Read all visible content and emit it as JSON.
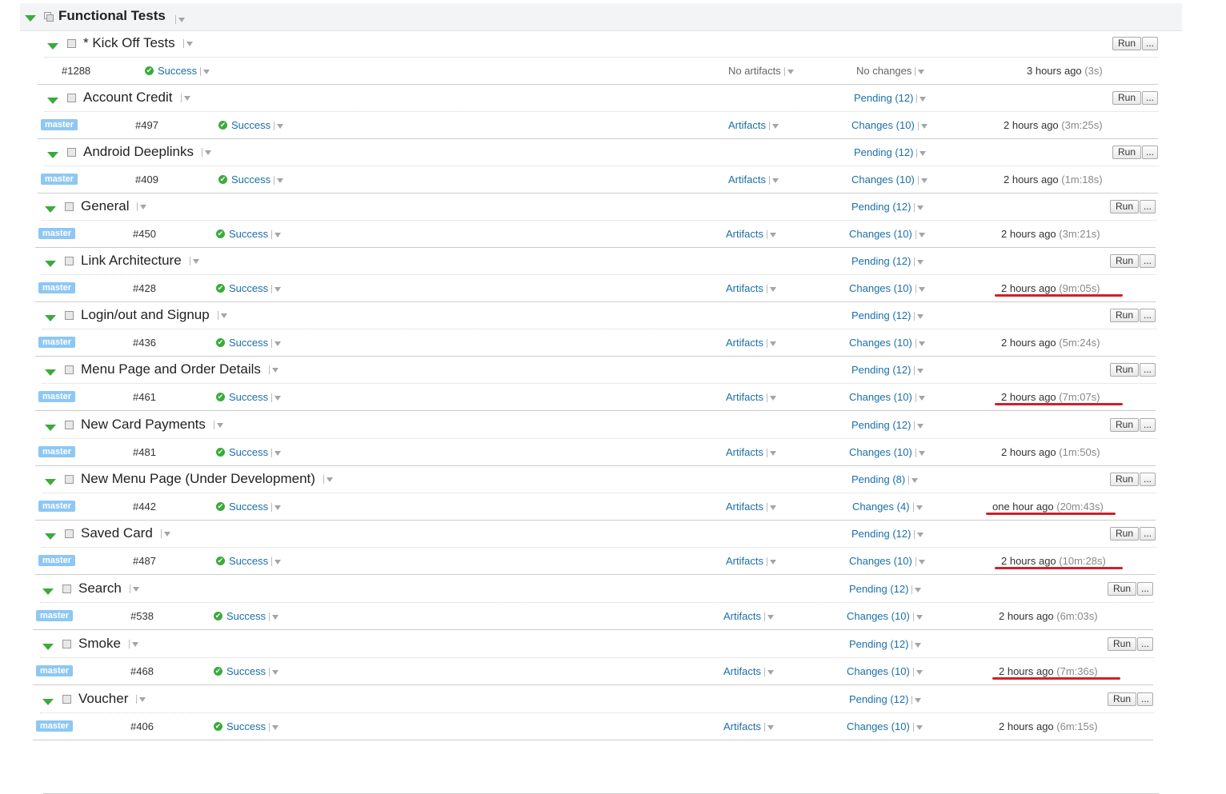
{
  "project": {
    "title": "Functional Tests"
  },
  "run_label": "Run",
  "more_label": "...",
  "configs": [
    {
      "name": "* Kick Off Tests",
      "pending": "",
      "build": {
        "branch": "",
        "number": "#1288",
        "status": "Success",
        "artifacts": "No artifacts",
        "changes": "No changes",
        "time": "3 hours ago",
        "duration": "(3s)",
        "highlighted": false
      }
    },
    {
      "name": "Account Credit",
      "pending": "Pending (12)",
      "build": {
        "branch": "master",
        "number": "#497",
        "status": "Success",
        "artifacts": "Artifacts",
        "changes": "Changes (10)",
        "time": "2 hours ago",
        "duration": "(3m:25s)",
        "highlighted": false
      }
    },
    {
      "name": "Android Deeplinks",
      "pending": "Pending (12)",
      "build": {
        "branch": "master",
        "number": "#409",
        "status": "Success",
        "artifacts": "Artifacts",
        "changes": "Changes (10)",
        "time": "2 hours ago",
        "duration": "(1m:18s)",
        "highlighted": false
      }
    },
    {
      "name": "General",
      "pending": "Pending (12)",
      "build": {
        "branch": "master",
        "number": "#450",
        "status": "Success",
        "artifacts": "Artifacts",
        "changes": "Changes (10)",
        "time": "2 hours ago",
        "duration": "(3m:21s)",
        "highlighted": false
      }
    },
    {
      "name": "Link Architecture",
      "pending": "Pending (12)",
      "build": {
        "branch": "master",
        "number": "#428",
        "status": "Success",
        "artifacts": "Artifacts",
        "changes": "Changes (10)",
        "time": "2 hours ago",
        "duration": "(9m:05s)",
        "highlighted": true
      }
    },
    {
      "name": "Login/out and Signup",
      "pending": "Pending (12)",
      "build": {
        "branch": "master",
        "number": "#436",
        "status": "Success",
        "artifacts": "Artifacts",
        "changes": "Changes (10)",
        "time": "2 hours ago",
        "duration": "(5m:24s)",
        "highlighted": false
      }
    },
    {
      "name": "Menu Page and Order Details",
      "pending": "Pending (12)",
      "build": {
        "branch": "master",
        "number": "#461",
        "status": "Success",
        "artifacts": "Artifacts",
        "changes": "Changes (10)",
        "time": "2 hours ago",
        "duration": "(7m:07s)",
        "highlighted": true
      }
    },
    {
      "name": "New Card Payments",
      "pending": "Pending (12)",
      "build": {
        "branch": "master",
        "number": "#481",
        "status": "Success",
        "artifacts": "Artifacts",
        "changes": "Changes (10)",
        "time": "2 hours ago",
        "duration": "(1m:50s)",
        "highlighted": false
      }
    },
    {
      "name": "New Menu Page (Under Development)",
      "pending": "Pending (8)",
      "build": {
        "branch": "master",
        "number": "#442",
        "status": "Success",
        "artifacts": "Artifacts",
        "changes": "Changes (4)",
        "time": "one hour ago",
        "duration": "(20m:43s)",
        "highlighted": true
      }
    },
    {
      "name": "Saved Card",
      "pending": "Pending (12)",
      "build": {
        "branch": "master",
        "number": "#487",
        "status": "Success",
        "artifacts": "Artifacts",
        "changes": "Changes (10)",
        "time": "2 hours ago",
        "duration": "(10m:28s)",
        "highlighted": true
      }
    },
    {
      "name": "Search",
      "pending": "Pending (12)",
      "build": {
        "branch": "master",
        "number": "#538",
        "status": "Success",
        "artifacts": "Artifacts",
        "changes": "Changes (10)",
        "time": "2 hours ago",
        "duration": "(6m:03s)",
        "highlighted": false
      }
    },
    {
      "name": "Smoke",
      "pending": "Pending (12)",
      "build": {
        "branch": "master",
        "number": "#468",
        "status": "Success",
        "artifacts": "Artifacts",
        "changes": "Changes (10)",
        "time": "2 hours ago",
        "duration": "(7m:36s)",
        "highlighted": true
      }
    },
    {
      "name": "Voucher",
      "pending": "Pending (12)",
      "build": {
        "branch": "master",
        "number": "#406",
        "status": "Success",
        "artifacts": "Artifacts",
        "changes": "Changes (10)",
        "time": "2 hours ago",
        "duration": "(6m:15s)",
        "highlighted": false
      }
    }
  ],
  "colors": {
    "success": "#3bab3b",
    "link": "#1b6fa8",
    "branch_badge": "#8ec7f3",
    "highlight": "#d0202a"
  }
}
